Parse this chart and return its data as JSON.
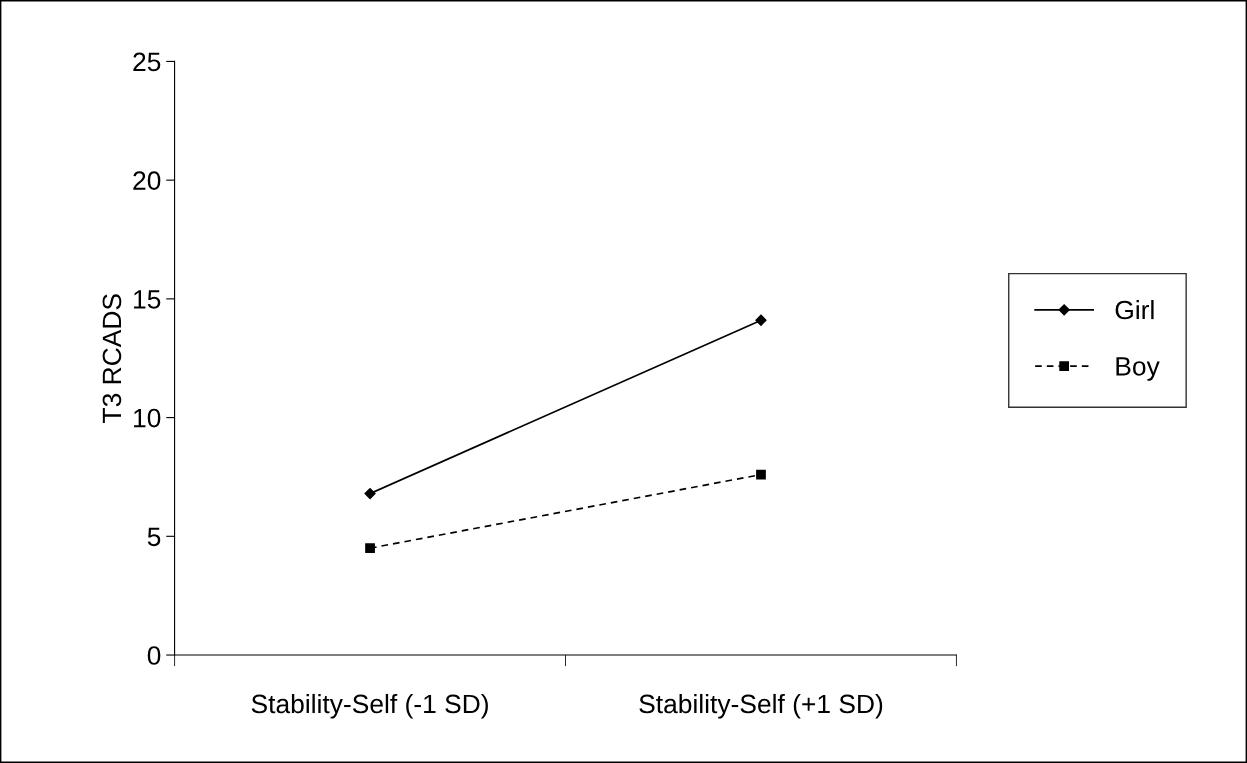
{
  "chart_data": {
    "type": "line",
    "ylabel": "T3 RCADS",
    "categories": [
      "Stability-Self (-1 SD)",
      "Stability-Self (+1 SD)"
    ],
    "series": [
      {
        "name": "Girl",
        "color": "#000000",
        "values": [
          6.8,
          14.1
        ],
        "marker": "diamond",
        "line_style": "solid"
      },
      {
        "name": "Boy",
        "color": "#000000",
        "values": [
          4.5,
          7.6
        ],
        "marker": "square",
        "line_style": "dashed"
      }
    ],
    "ylim": [
      0,
      25
    ],
    "yticks": [
      0,
      5,
      10,
      15,
      20,
      25
    ],
    "grid": false,
    "legend": "right"
  }
}
